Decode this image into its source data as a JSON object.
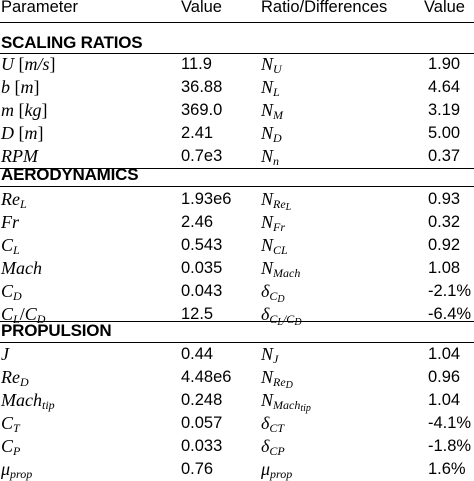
{
  "columns": [
    "Parameter",
    "Value",
    "Ratio/Differences",
    "Value"
  ],
  "sections": [
    {
      "title": "SCALING RATIOS",
      "rows": [
        {
          "param": "U [m/s]",
          "value": "11.9",
          "ratio": "N_U",
          "ratio_value": "1.90"
        },
        {
          "param": "b [m]",
          "value": "36.88",
          "ratio": "N_L",
          "ratio_value": "4.64"
        },
        {
          "param": "m [kg]",
          "value": "369.0",
          "ratio": "N_M",
          "ratio_value": "3.19"
        },
        {
          "param": "D [m]",
          "value": "2.41",
          "ratio": "N_D",
          "ratio_value": "5.00"
        },
        {
          "param": "RPM",
          "value": "0.7e3",
          "ratio": "N_n",
          "ratio_value": "0.37"
        }
      ]
    },
    {
      "title": "AERODYNAMICS",
      "rows": [
        {
          "param": "Re_L",
          "value": "1.93e6",
          "ratio": "N_Re_L",
          "ratio_value": "0.93"
        },
        {
          "param": "Fr",
          "value": "2.46",
          "ratio": "N_Fr",
          "ratio_value": "0.32"
        },
        {
          "param": "C_L",
          "value": "0.543",
          "ratio": "N_CL",
          "ratio_value": "0.92"
        },
        {
          "param": "Mach",
          "value": "0.035",
          "ratio": "N_Mach",
          "ratio_value": "1.08"
        },
        {
          "param": "C_D",
          "value": "0.043",
          "ratio": "δ_C_D",
          "ratio_value": "-2.1%"
        },
        {
          "param": "C_L/C_D",
          "value": "12.5",
          "ratio": "δ_C_L/C_D",
          "ratio_value": "-6.4%"
        }
      ]
    },
    {
      "title": "PROPULSION",
      "rows": [
        {
          "param": "J",
          "value": "0.44",
          "ratio": "N_J",
          "ratio_value": "1.04"
        },
        {
          "param": "Re_D",
          "value": "4.48e6",
          "ratio": "N_Re_D",
          "ratio_value": "0.96"
        },
        {
          "param": "Mach_tip",
          "value": "0.248",
          "ratio": "N_Mach_tip",
          "ratio_value": "1.04"
        },
        {
          "param": "C_T",
          "value": "0.057",
          "ratio": "δ_CT",
          "ratio_value": "-4.1%"
        },
        {
          "param": "C_P",
          "value": "0.033",
          "ratio": "δ_CP",
          "ratio_value": "-1.8%"
        },
        {
          "param": "μ_prop",
          "value": "0.76",
          "ratio": "μ_prop",
          "ratio_value": "1.6%"
        }
      ]
    }
  ],
  "math": {
    "U": "U",
    "b": "b",
    "m": "m",
    "D": "D",
    "RPM": "RPM",
    "unit_ms": "[m/s]",
    "unit_m": "[m]",
    "unit_kg": "[kg]",
    "N": "N",
    "Re": "Re",
    "Fr": "Fr",
    "C": "C",
    "Mach": "Mach",
    "delta": "δ",
    "J": "J",
    "mu": "μ",
    "sub_U": "U",
    "sub_L": "L",
    "sub_M": "M",
    "sub_D": "D",
    "sub_n": "n",
    "sub_Re": "Re",
    "sub_Fr": "Fr",
    "sub_CL": "CL",
    "sub_Mach": "Mach",
    "sub_C": "C",
    "sub_J": "J",
    "sub_tip": "tip",
    "sub_CT": "CT",
    "sub_CP": "CP",
    "sub_T": "T",
    "sub_P": "P",
    "sub_prop": "prop",
    "slash": "/"
  }
}
